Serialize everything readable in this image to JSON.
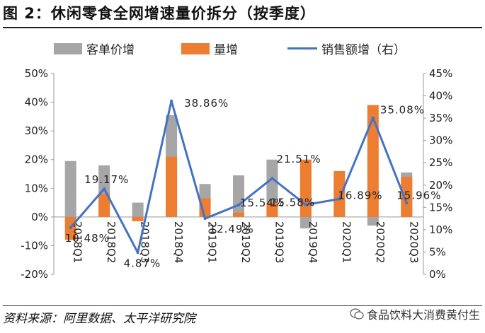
{
  "title": "图 2：休闲零食全网增速量价拆分（按季度）",
  "legend": {
    "price": "客单价增",
    "volume": "量增",
    "sales": "销售额增（右）"
  },
  "source": "资料来源：阿里数据、太平洋研究院",
  "watermark": "食品饮料大消费黄付生",
  "colors": {
    "price": "#A6A6A6",
    "volume": "#ED7D31",
    "sales": "#4472C4"
  },
  "chart_data": {
    "type": "bar+line",
    "categories": [
      "2018Q1",
      "2018Q2",
      "2018Q3",
      "2018Q4",
      "2019Q1",
      "2019Q2",
      "2019Q3",
      "2019Q4",
      "2020Q1",
      "2020Q2",
      "2020Q3"
    ],
    "series": [
      {
        "name": "客单价增",
        "axis": "left",
        "type": "bar",
        "values": [
          19.5,
          18,
          5,
          35.5,
          11.5,
          14.5,
          20,
          -4,
          13.5,
          -3,
          15.5
        ]
      },
      {
        "name": "量增",
        "axis": "left",
        "type": "bar",
        "values": [
          -8,
          8,
          -1.5,
          21,
          6.5,
          1.5,
          5,
          20,
          16,
          39,
          14
        ]
      },
      {
        "name": "销售额增（右）",
        "axis": "right",
        "type": "line",
        "values": [
          10.48,
          19.17,
          4.87,
          38.86,
          12.49,
          15.54,
          21.51,
          15.58,
          16.89,
          35.08,
          15.96
        ]
      }
    ],
    "data_labels": [
      "10.48%",
      "19.17%",
      "4.87%",
      "38.86%",
      "12.49%",
      "15.54%",
      "21.51%",
      "15.58%",
      "16.89%",
      "35.08%",
      "15.96%"
    ],
    "left_axis": {
      "ylim": [
        -20,
        50
      ],
      "ticks": [
        "-20%",
        "-10%",
        "0%",
        "10%",
        "20%",
        "30%",
        "40%",
        "50%"
      ]
    },
    "right_axis": {
      "ylim": [
        0,
        45
      ],
      "ticks": [
        "0%",
        "5%",
        "10%",
        "15%",
        "20%",
        "25%",
        "30%",
        "35%",
        "40%",
        "45%"
      ]
    }
  }
}
